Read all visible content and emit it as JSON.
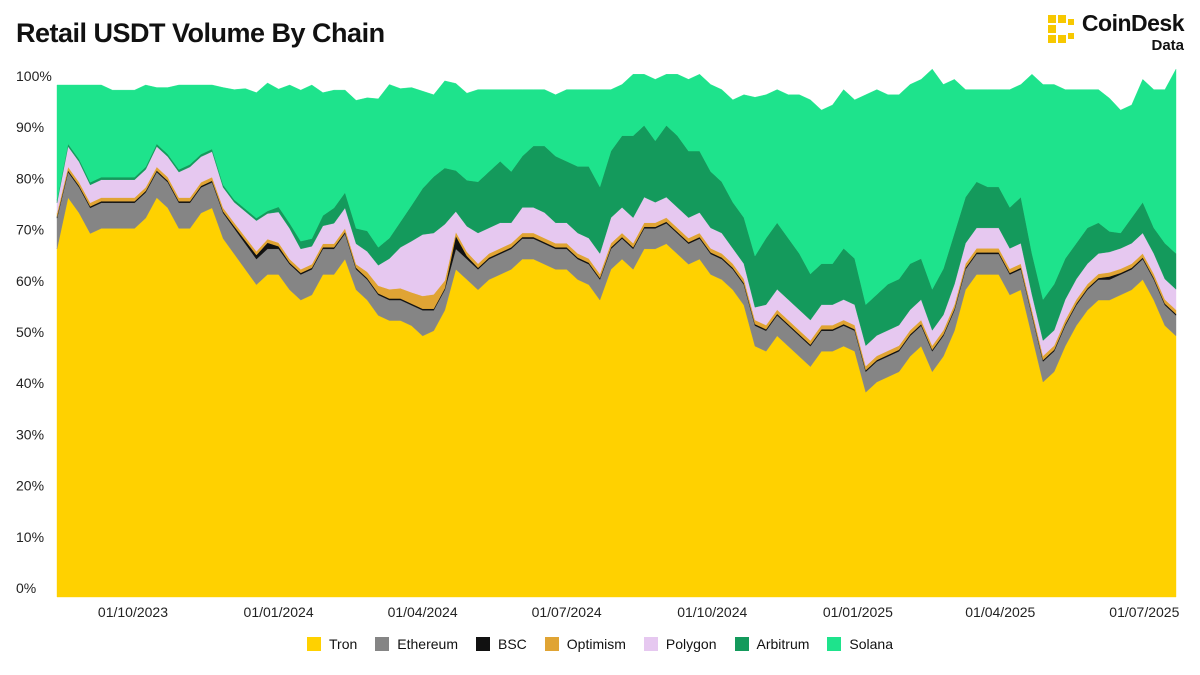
{
  "header": {
    "title": "Retail USDT Volume By Chain",
    "brand_name": "CoinDesk",
    "brand_sub": "Data",
    "brand_color": "#F7C800"
  },
  "chart_data": {
    "type": "area",
    "stacked": true,
    "title": "Retail USDT Volume By Chain",
    "xlabel": "",
    "ylabel": "",
    "ylim": [
      0,
      100
    ],
    "yticks": [
      "0%",
      "10%",
      "20%",
      "30%",
      "40%",
      "50%",
      "60%",
      "70%",
      "80%",
      "90%",
      "100%"
    ],
    "xticks": [
      "01/10/2023",
      "01/01/2024",
      "01/04/2024",
      "01/07/2024",
      "01/10/2024",
      "01/01/2025",
      "01/04/2025",
      "01/07/2025"
    ],
    "x_start": "2023-08-14",
    "x_end": "2025-07-21",
    "legend_position": "bottom",
    "grid": false,
    "series": [
      {
        "name": "Tron",
        "color": "#FFD100",
        "values": [
          68,
          78,
          75,
          71,
          72,
          72,
          72,
          72,
          74,
          78,
          76,
          72,
          72,
          75,
          76,
          70,
          67,
          64,
          61,
          63,
          63,
          60,
          58,
          59,
          63,
          63,
          66,
          60,
          58,
          55,
          54,
          54,
          53,
          51,
          52,
          56,
          64,
          62,
          60,
          62,
          63,
          64,
          66,
          66,
          65,
          64,
          64,
          62,
          61,
          58,
          64,
          66,
          64,
          68,
          68,
          69,
          67,
          65,
          66,
          63,
          62,
          60,
          57,
          49,
          48,
          51,
          49,
          47,
          45,
          48,
          48,
          49,
          48,
          40,
          42,
          43,
          44,
          47,
          49,
          44,
          47,
          52,
          60,
          63,
          63,
          63,
          59,
          60,
          51,
          42,
          44,
          49,
          53,
          56,
          58,
          58,
          59,
          60,
          62,
          58,
          53,
          51
        ]
      },
      {
        "name": "Ethereum",
        "color": "#858585",
        "values": [
          6,
          5,
          5,
          5,
          5,
          5,
          5,
          5,
          5,
          5,
          5,
          5,
          5,
          5,
          5,
          5,
          5,
          5,
          5,
          5,
          5,
          5,
          5,
          5,
          5,
          5,
          5,
          4,
          4,
          4,
          4,
          4,
          4,
          5,
          4,
          4,
          4,
          4,
          4,
          4,
          4,
          4,
          4,
          4,
          4,
          4,
          4,
          4,
          4,
          4,
          4,
          4,
          4,
          4,
          4,
          4,
          4,
          4,
          4,
          4,
          4,
          4,
          4,
          4,
          4,
          4,
          4,
          4,
          4,
          4,
          4,
          4,
          4,
          4,
          4,
          4,
          4,
          4,
          4,
          4,
          4,
          4,
          4,
          4,
          4,
          4,
          4,
          4,
          4,
          4,
          4,
          4,
          4,
          4,
          4,
          4,
          4,
          4,
          4,
          4,
          4,
          4
        ]
      },
      {
        "name": "BSC",
        "color": "#111111",
        "values": [
          0.3,
          0.3,
          0.3,
          0.3,
          0.3,
          0.3,
          0.3,
          0.3,
          0.3,
          0.3,
          0.3,
          0.3,
          0.3,
          0.3,
          0.3,
          0.3,
          0.4,
          0.6,
          0.8,
          1.2,
          0.5,
          0.3,
          0.3,
          0.3,
          0.3,
          0.3,
          0.3,
          0.3,
          0.3,
          0.3,
          0.3,
          0.3,
          0.3,
          0.3,
          0.3,
          0.3,
          2.5,
          0.6,
          0.3,
          0.3,
          0.3,
          0.3,
          0.3,
          0.3,
          0.3,
          0.3,
          0.3,
          0.3,
          0.3,
          0.3,
          0.3,
          0.3,
          0.3,
          0.3,
          0.3,
          0.3,
          0.3,
          0.3,
          0.3,
          0.3,
          0.3,
          0.3,
          0.3,
          0.3,
          0.3,
          0.3,
          0.3,
          0.3,
          0.3,
          0.3,
          0.3,
          0.3,
          0.3,
          0.3,
          0.3,
          0.3,
          0.3,
          0.3,
          0.3,
          0.3,
          0.3,
          0.3,
          0.3,
          0.3,
          0.3,
          0.3,
          0.3,
          0.3,
          0.3,
          0.3,
          0.3,
          0.3,
          0.3,
          0.3,
          0.3,
          0.6,
          0.3,
          0.3,
          0.3,
          0.3,
          0.3,
          0.3
        ]
      },
      {
        "name": "Optimism",
        "color": "#E0A434",
        "values": [
          0.7,
          0.7,
          0.7,
          0.7,
          0.7,
          0.7,
          0.7,
          0.7,
          0.7,
          0.7,
          0.7,
          0.7,
          0.7,
          0.7,
          0.7,
          0.7,
          0.7,
          0.7,
          0.7,
          0.7,
          0.7,
          0.7,
          0.7,
          0.7,
          0.7,
          0.7,
          0.7,
          0.7,
          1.2,
          1.5,
          1.8,
          2,
          2.2,
          2.5,
          2.8,
          1.5,
          0.8,
          0.8,
          0.8,
          0.8,
          0.8,
          0.8,
          0.8,
          0.8,
          0.8,
          0.8,
          0.8,
          0.8,
          0.8,
          0.8,
          0.8,
          0.8,
          0.8,
          0.8,
          0.8,
          0.8,
          0.8,
          0.8,
          0.8,
          0.8,
          0.8,
          0.8,
          0.8,
          0.8,
          0.8,
          0.8,
          0.8,
          0.8,
          0.8,
          0.8,
          0.8,
          0.8,
          0.8,
          0.8,
          0.8,
          0.8,
          0.8,
          0.8,
          0.8,
          0.8,
          0.8,
          0.8,
          0.8,
          0.8,
          0.8,
          0.8,
          0.8,
          0.8,
          0.8,
          0.8,
          0.8,
          0.8,
          0.8,
          0.8,
          0.8,
          0.8,
          0.8,
          0.8,
          0.8,
          0.8,
          0.8,
          0.8
        ]
      },
      {
        "name": "Polygon",
        "color": "#E6C8F0",
        "values": [
          2,
          4,
          4,
          3.5,
          3.5,
          3.5,
          3.5,
          3.5,
          3.5,
          4,
          4,
          5,
          6,
          5,
          5,
          4,
          4,
          5,
          6,
          5,
          6,
          6,
          4,
          3.5,
          3.5,
          4,
          4,
          4,
          4,
          4,
          6,
          8,
          10,
          12,
          12,
          11,
          4,
          5,
          6,
          5,
          5,
          4,
          5,
          5,
          5,
          4,
          4,
          4,
          4,
          4,
          5,
          5,
          5,
          5,
          4,
          4,
          4,
          4,
          4,
          4,
          4,
          3,
          3,
          2.5,
          4,
          4,
          4,
          4,
          4,
          4,
          4,
          4,
          4,
          4,
          4,
          4,
          4,
          4,
          4,
          3,
          3,
          4,
          4,
          4,
          4,
          4,
          4,
          4,
          3,
          3,
          3,
          4,
          4,
          4,
          4,
          4,
          4,
          4,
          4,
          4,
          4,
          4
        ]
      },
      {
        "name": "Arbitrum",
        "color": "#149A5C",
        "values": [
          0.5,
          0.5,
          0.5,
          0.5,
          0.5,
          0.5,
          0.5,
          0.5,
          0.5,
          0.5,
          0.5,
          0.5,
          0.5,
          0.5,
          0.5,
          0.5,
          0.5,
          0.5,
          0.5,
          0.5,
          1,
          1,
          1.5,
          1.5,
          2,
          3,
          3,
          3,
          4,
          3.5,
          4,
          5,
          7,
          9,
          11,
          11,
          8,
          9,
          10,
          11,
          12,
          10,
          10,
          12,
          13,
          13,
          12,
          13,
          14,
          13,
          13,
          14,
          16,
          14,
          12,
          14,
          14,
          13,
          12,
          11,
          10,
          9,
          9,
          10,
          13,
          13,
          12,
          11,
          9,
          8,
          8,
          10,
          9,
          8,
          8,
          9,
          9,
          9,
          8,
          8,
          9,
          10,
          9,
          9,
          8,
          8,
          8,
          9,
          8,
          8,
          9,
          8,
          7,
          7,
          6,
          4,
          3,
          5,
          6,
          5,
          7,
          7,
          6
        ]
      },
      {
        "name": "Solana",
        "color": "#1EE38C",
        "values": [
          22.5,
          11.5,
          14.5,
          19,
          18,
          17,
          17,
          17,
          16,
          11,
          13,
          16.5,
          15.5,
          13.5,
          12.5,
          19,
          21.5,
          23.5,
          24.5,
          25,
          23,
          27,
          29.5,
          30,
          24,
          23,
          20,
          25,
          26,
          29,
          30,
          26,
          23,
          19,
          16,
          17,
          17,
          17,
          18,
          16,
          14,
          16,
          13,
          11,
          11,
          12,
          14,
          15,
          15,
          19,
          12,
          10,
          12,
          10,
          12,
          10,
          12,
          14,
          15,
          17,
          18,
          20,
          24,
          31,
          28,
          26,
          28,
          31,
          34,
          30,
          31,
          31,
          31,
          41,
          40,
          37,
          36,
          35,
          35,
          43,
          36,
          30,
          21,
          18,
          19,
          19,
          23,
          22,
          35,
          42,
          39,
          33,
          30,
          27,
          26,
          26,
          24,
          22,
          24,
          27,
          30,
          36
        ]
      }
    ]
  }
}
